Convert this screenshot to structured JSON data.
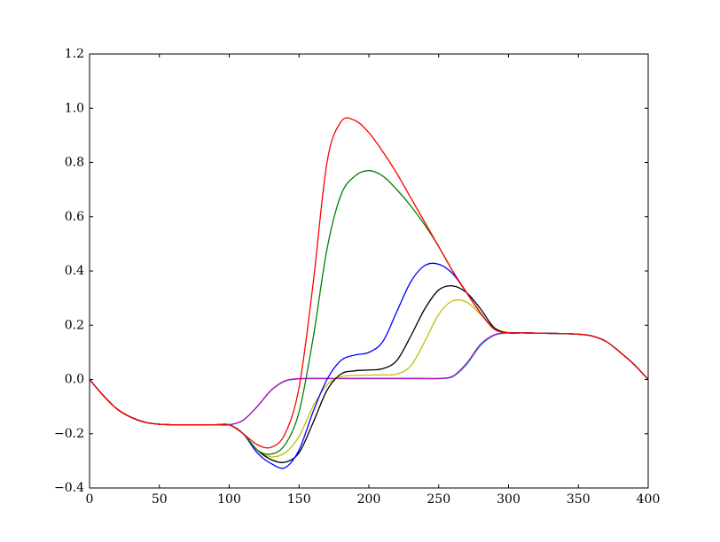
{
  "chart_data": {
    "type": "line",
    "x": [
      0,
      10,
      20,
      30,
      40,
      50,
      60,
      70,
      80,
      90,
      100,
      110,
      120,
      130,
      140,
      150,
      160,
      170,
      180,
      190,
      200,
      210,
      220,
      230,
      240,
      250,
      260,
      270,
      280,
      290,
      300,
      310,
      320,
      330,
      340,
      350,
      360,
      370,
      380,
      390,
      400
    ],
    "series": [
      {
        "color": "#00bfbf",
        "values": [
          0,
          -0.06,
          -0.11,
          -0.14,
          -0.158,
          -0.165,
          -0.167,
          -0.167,
          -0.167,
          -0.167,
          -0.167,
          -0.15,
          -0.1,
          -0.04,
          -0.006,
          0.002,
          0.003,
          0.003,
          0.003,
          0.003,
          0.003,
          0.003,
          0.003,
          0.003,
          0.003,
          0.003,
          0.01,
          0.055,
          0.125,
          0.163,
          0.172,
          0.172,
          0.171,
          0.17,
          0.169,
          0.167,
          0.16,
          0.14,
          0.1,
          0.055,
          0
        ]
      },
      {
        "color": "#bf00bf",
        "values": [
          0,
          -0.06,
          -0.11,
          -0.14,
          -0.158,
          -0.165,
          -0.167,
          -0.167,
          -0.167,
          -0.167,
          -0.167,
          -0.15,
          -0.1,
          -0.04,
          -0.005,
          0.003,
          0.004,
          0.004,
          0.004,
          0.004,
          0.004,
          0.004,
          0.004,
          0.004,
          0.004,
          0.004,
          0.012,
          0.06,
          0.13,
          0.165,
          0.172,
          0.172,
          0.171,
          0.17,
          0.169,
          0.167,
          0.16,
          0.14,
          0.1,
          0.055,
          0
        ]
      },
      {
        "color": "#bfbf00",
        "values": [
          0,
          -0.06,
          -0.11,
          -0.14,
          -0.158,
          -0.165,
          -0.167,
          -0.167,
          -0.167,
          -0.167,
          -0.167,
          -0.2,
          -0.26,
          -0.285,
          -0.27,
          -0.21,
          -0.1,
          -0.02,
          0.01,
          0.015,
          0.016,
          0.017,
          0.02,
          0.05,
          0.14,
          0.24,
          0.29,
          0.285,
          0.24,
          0.19,
          0.172,
          0.172,
          0.171,
          0.17,
          0.169,
          0.167,
          0.16,
          0.14,
          0.1,
          0.055,
          0
        ]
      },
      {
        "color": "#000000",
        "values": [
          0,
          -0.06,
          -0.11,
          -0.14,
          -0.158,
          -0.165,
          -0.167,
          -0.167,
          -0.167,
          -0.167,
          -0.167,
          -0.2,
          -0.26,
          -0.295,
          -0.305,
          -0.27,
          -0.16,
          -0.04,
          0.02,
          0.032,
          0.035,
          0.04,
          0.07,
          0.16,
          0.26,
          0.33,
          0.345,
          0.32,
          0.26,
          0.19,
          0.172,
          0.172,
          0.171,
          0.17,
          0.169,
          0.167,
          0.16,
          0.14,
          0.1,
          0.055,
          0
        ]
      },
      {
        "color": "#0000ff",
        "values": [
          0,
          -0.06,
          -0.11,
          -0.14,
          -0.158,
          -0.165,
          -0.167,
          -0.167,
          -0.167,
          -0.167,
          -0.167,
          -0.2,
          -0.27,
          -0.31,
          -0.325,
          -0.26,
          -0.12,
          0,
          0.07,
          0.09,
          0.1,
          0.14,
          0.25,
          0.36,
          0.42,
          0.425,
          0.39,
          0.32,
          0.245,
          0.185,
          0.172,
          0.172,
          0.171,
          0.17,
          0.169,
          0.167,
          0.16,
          0.14,
          0.1,
          0.055,
          0
        ]
      },
      {
        "color": "#008000",
        "values": [
          0,
          -0.06,
          -0.11,
          -0.14,
          -0.158,
          -0.165,
          -0.167,
          -0.167,
          -0.167,
          -0.167,
          -0.167,
          -0.2,
          -0.26,
          -0.275,
          -0.24,
          -0.12,
          0.15,
          0.48,
          0.68,
          0.75,
          0.77,
          0.75,
          0.7,
          0.64,
          0.57,
          0.49,
          0.4,
          0.32,
          0.245,
          0.185,
          0.172,
          0.172,
          0.171,
          0.17,
          0.169,
          0.167,
          0.16,
          0.14,
          0.1,
          0.055,
          0
        ]
      },
      {
        "color": "#ff0000",
        "values": [
          0,
          -0.06,
          -0.11,
          -0.14,
          -0.158,
          -0.165,
          -0.167,
          -0.167,
          -0.167,
          -0.167,
          -0.167,
          -0.2,
          -0.24,
          -0.25,
          -0.2,
          -0.03,
          0.35,
          0.8,
          0.95,
          0.955,
          0.91,
          0.84,
          0.76,
          0.67,
          0.58,
          0.49,
          0.4,
          0.32,
          0.245,
          0.185,
          0.172,
          0.172,
          0.171,
          0.17,
          0.169,
          0.167,
          0.16,
          0.14,
          0.1,
          0.055,
          0
        ]
      }
    ],
    "xlim": [
      0,
      400
    ],
    "xticks": [
      0,
      50,
      100,
      150,
      200,
      250,
      300,
      350,
      400
    ],
    "ylim": [
      -0.4,
      1.2
    ],
    "yticks": [
      {
        "value": -0.4,
        "label": "−0.4"
      },
      {
        "value": -0.2,
        "label": "−0.2"
      },
      {
        "value": 0,
        "label": "0.0"
      },
      0.2,
      0.4,
      0.6,
      0.8,
      {
        "value": 1,
        "label": "1.0"
      },
      1.2
    ],
    "grid": false
  }
}
